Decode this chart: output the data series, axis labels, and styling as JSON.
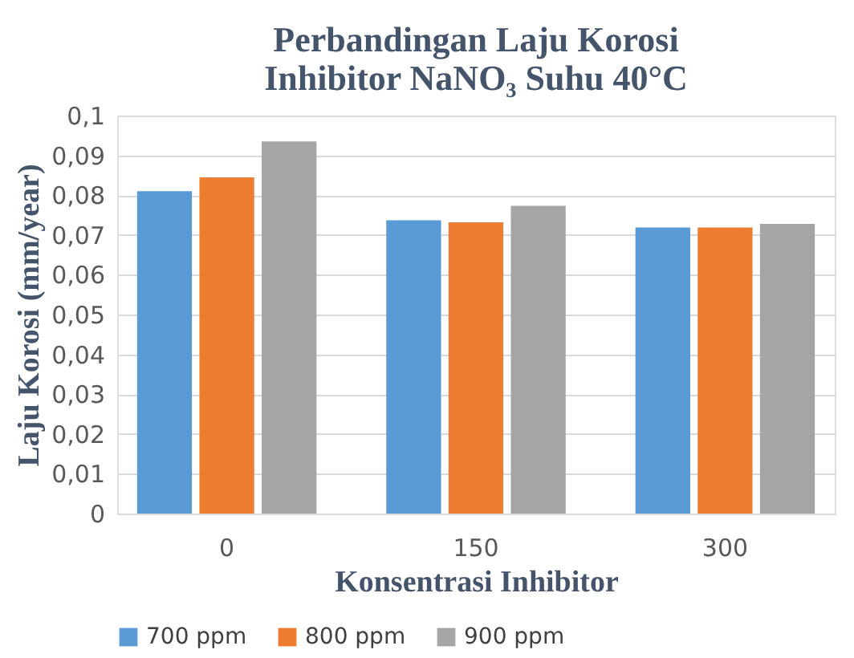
{
  "chart_data": {
    "type": "bar",
    "title": "Perbandingan Laju Korosi\nInhibitor NaNO₃ Suhu 40°C",
    "xlabel": "Konsentrasi Inhibitor",
    "ylabel": "Laju Korosi (mm/year)",
    "categories": [
      "0",
      "150",
      "300"
    ],
    "series": [
      {
        "name": "700 ppm",
        "color": "#5b9bd5",
        "values": [
          0.081,
          0.0737,
          0.0719
        ]
      },
      {
        "name": "800 ppm",
        "color": "#ed7d31",
        "values": [
          0.0845,
          0.0732,
          0.0719
        ]
      },
      {
        "name": "900 ppm",
        "color": "#a5a5a5",
        "values": [
          0.0935,
          0.0773,
          0.0728
        ]
      }
    ],
    "ylim": [
      0,
      0.1
    ],
    "yticks": [
      0,
      {
        "value": 0.01,
        "label": "0,01"
      },
      {
        "value": 0.02,
        "label": "0,02"
      },
      {
        "value": 0.03,
        "label": "0,03"
      },
      {
        "value": 0.04,
        "label": "0,04"
      },
      {
        "value": 0.05,
        "label": "0,05"
      },
      {
        "value": 0.06,
        "label": "0,06"
      },
      {
        "value": 0.07,
        "label": "0,07"
      },
      {
        "value": 0.08,
        "label": "0,08"
      },
      {
        "value": 0.09,
        "label": "0,09"
      },
      {
        "value": 0.1,
        "label": "0,1"
      }
    ],
    "grid": "y",
    "legend": "bottom"
  }
}
